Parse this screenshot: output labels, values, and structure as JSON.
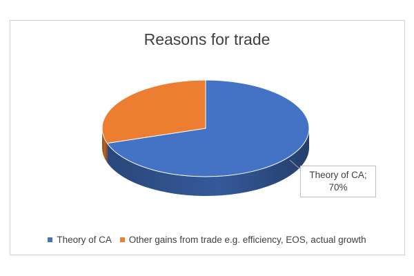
{
  "chart_data": {
    "type": "pie",
    "title": "Reasons for trade",
    "slices": [
      {
        "name": "Theory of CA",
        "value": 70,
        "color": "#4472c4"
      },
      {
        "name": "Other gains from trade e.g. efficiency, EOS, actual growth",
        "value": 30,
        "color": "#ed7d31"
      }
    ],
    "data_label": {
      "series": "Theory of CA",
      "line1": "Theory of CA;",
      "line2": "70%"
    },
    "legend": {
      "placement": "bottom"
    },
    "style": "3d"
  }
}
